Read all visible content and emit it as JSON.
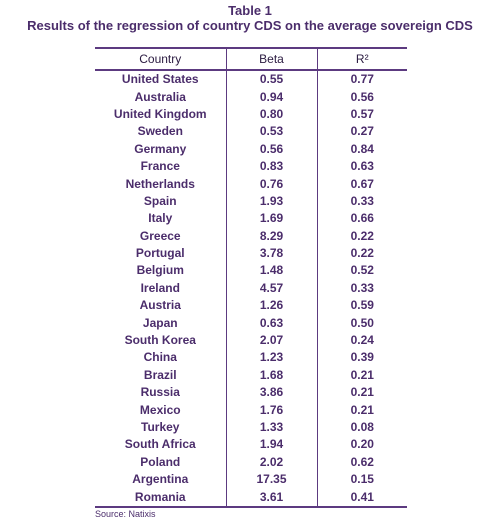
{
  "title_line1": "Table 1",
  "title_line2": "Results of the regression of country CDS on the average sovereign CDS",
  "columns": [
    "Country",
    "Beta",
    "R²"
  ],
  "rows": [
    {
      "country": "United States",
      "beta": "0.55",
      "r2": "0.77"
    },
    {
      "country": "Australia",
      "beta": "0.94",
      "r2": "0.56"
    },
    {
      "country": "United Kingdom",
      "beta": "0.80",
      "r2": "0.57"
    },
    {
      "country": "Sweden",
      "beta": "0.53",
      "r2": "0.27"
    },
    {
      "country": "Germany",
      "beta": "0.56",
      "r2": "0.84"
    },
    {
      "country": "France",
      "beta": "0.83",
      "r2": "0.63"
    },
    {
      "country": "Netherlands",
      "beta": "0.76",
      "r2": "0.67"
    },
    {
      "country": "Spain",
      "beta": "1.93",
      "r2": "0.33"
    },
    {
      "country": "Italy",
      "beta": "1.69",
      "r2": "0.66"
    },
    {
      "country": "Greece",
      "beta": "8.29",
      "r2": "0.22"
    },
    {
      "country": "Portugal",
      "beta": "3.78",
      "r2": "0.22"
    },
    {
      "country": "Belgium",
      "beta": "1.48",
      "r2": "0.52"
    },
    {
      "country": "Ireland",
      "beta": "4.57",
      "r2": "0.33"
    },
    {
      "country": "Austria",
      "beta": "1.26",
      "r2": "0.59"
    },
    {
      "country": "Japan",
      "beta": "0.63",
      "r2": "0.50"
    },
    {
      "country": "South Korea",
      "beta": "2.07",
      "r2": "0.24"
    },
    {
      "country": "China",
      "beta": "1.23",
      "r2": "0.39"
    },
    {
      "country": "Brazil",
      "beta": "1.68",
      "r2": "0.21"
    },
    {
      "country": "Russia",
      "beta": "3.86",
      "r2": "0.21"
    },
    {
      "country": "Mexico",
      "beta": "1.76",
      "r2": "0.21"
    },
    {
      "country": "Turkey",
      "beta": "1.33",
      "r2": "0.08"
    },
    {
      "country": "South Africa",
      "beta": "1.94",
      "r2": "0.20"
    },
    {
      "country": "Poland",
      "beta": "2.02",
      "r2": "0.62"
    },
    {
      "country": "Argentina",
      "beta": "17.35",
      "r2": "0.15"
    },
    {
      "country": "Romania",
      "beta": "3.61",
      "r2": "0.41"
    }
  ],
  "source": "Source: Natixis",
  "colors": {
    "text": "#4b2d6b",
    "rule": "#5c3a80"
  }
}
